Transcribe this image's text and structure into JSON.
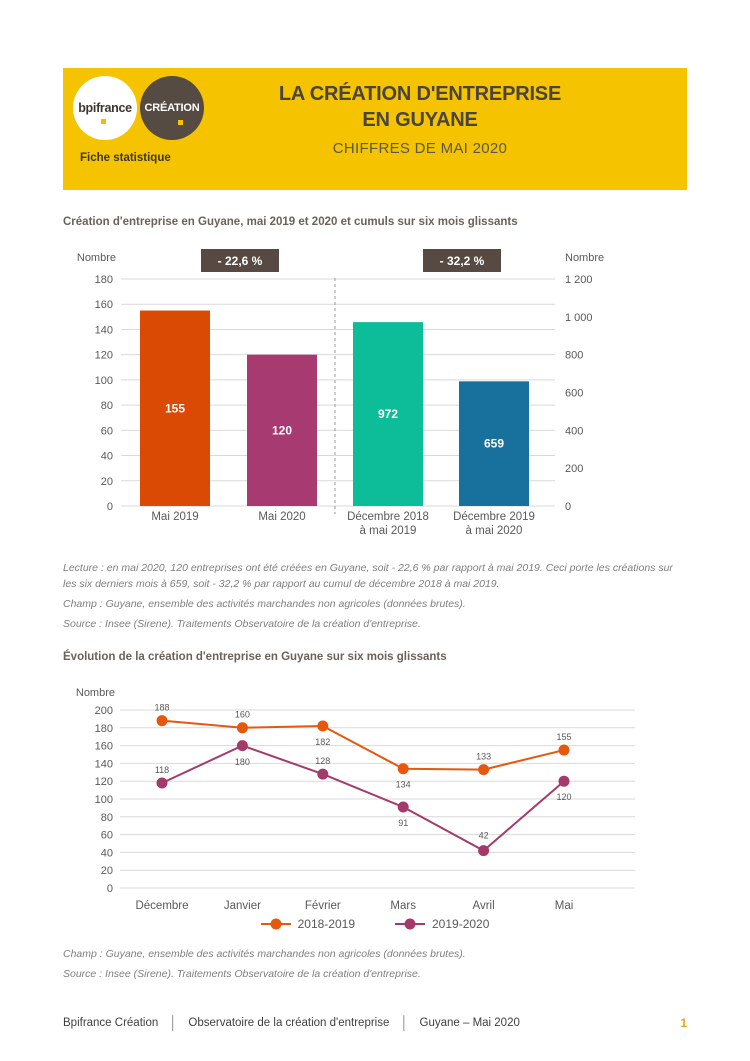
{
  "header": {
    "logo_bpifrance": "bpifrance",
    "logo_creation": "CRÉATION",
    "tagline": "Fiche statistique",
    "title_line1": "LA CRÉATION D'ENTREPRISE",
    "title_line2": "EN GUYANE",
    "subtitle": "CHIFFRES DE MAI 2020",
    "background_color": "#F5C300",
    "circle_color": "#564B43"
  },
  "section1": {
    "title": "Création d'entreprise en Guyane, mai 2019 et 2020 et cumuls sur six mois glissants"
  },
  "section2": {
    "title": "Évolution de la création d'entreprise en Guyane sur six mois glissants"
  },
  "chart_data": [
    {
      "type": "bar",
      "title": "Création d'entreprise en Guyane, mai 2019 et 2020 et cumuls sur six mois glissants",
      "left_axis": {
        "label": "Nombre",
        "min": 0,
        "max": 180,
        "step": 20
      },
      "right_axis": {
        "label": "Nombre",
        "min": 0,
        "max": 1200,
        "step": 200
      },
      "grid": true,
      "bars": [
        {
          "category_lines": [
            "Mai 2019"
          ],
          "value": 155,
          "axis": "left",
          "color": "#DB4A04"
        },
        {
          "category_lines": [
            "Mai 2020"
          ],
          "value": 120,
          "axis": "left",
          "color": "#A73A70"
        },
        {
          "category_lines": [
            "Décembre 2018",
            "à mai 2019"
          ],
          "value": 972,
          "axis": "right",
          "color": "#0DBC98"
        },
        {
          "category_lines": [
            "Décembre 2019",
            "à mai 2020"
          ],
          "value": 659,
          "axis": "right",
          "color": "#17719C"
        }
      ],
      "badges": [
        {
          "text": "- 22,6 %"
        },
        {
          "text": "- 32,2 %"
        }
      ],
      "badge_bg": "#564A42",
      "divider_after_index": 1
    },
    {
      "type": "line",
      "title": "Évolution de la création d'entreprise en Guyane sur six mois glissants",
      "y_axis": {
        "label": "Nombre",
        "min": 0,
        "max": 200,
        "step": 20
      },
      "categories": [
        "Décembre",
        "Janvier",
        "Février",
        "Mars",
        "Avril",
        "Mai"
      ],
      "series": [
        {
          "name": "2018-2019",
          "color": "#E6580D",
          "values": [
            188,
            180,
            182,
            134,
            133,
            155
          ],
          "label_dy": [
            -10,
            37,
            19,
            19,
            -10,
            -10
          ]
        },
        {
          "name": "2019-2020",
          "color": "#A43A6B",
          "values": [
            118,
            160,
            128,
            91,
            42,
            120
          ],
          "label_dy": [
            -10,
            -28,
            -10,
            19,
            -12,
            19
          ]
        }
      ],
      "legend_position": "bottom",
      "grid": true
    }
  ],
  "notes1": {
    "lecture": "Lecture : en mai 2020, 120 entreprises ont été créées en Guyane, soit - 22,6 % par rapport à mai 2019. Ceci porte les créations sur les six derniers mois à 659, soit - 32,2 % par rapport au cumul de décembre 2018 à mai 2019.",
    "champ": "Champ : Guyane, ensemble des activités marchandes non agricoles (données brutes).",
    "source": "Source : Insee (Sirene). Traitements Observatoire de la création d'entreprise."
  },
  "notes2": {
    "champ": "Champ : Guyane, ensemble des activités marchandes non agricoles (données brutes).",
    "source": "Source : Insee (Sirene). Traitements Observatoire de la création d'entreprise."
  },
  "footer": {
    "items": [
      "Bpifrance Création",
      "Observatoire de la création d'entreprise",
      "Guyane – Mai 2020"
    ],
    "separator": "│",
    "page": "1",
    "page_color": "#E7A614"
  }
}
